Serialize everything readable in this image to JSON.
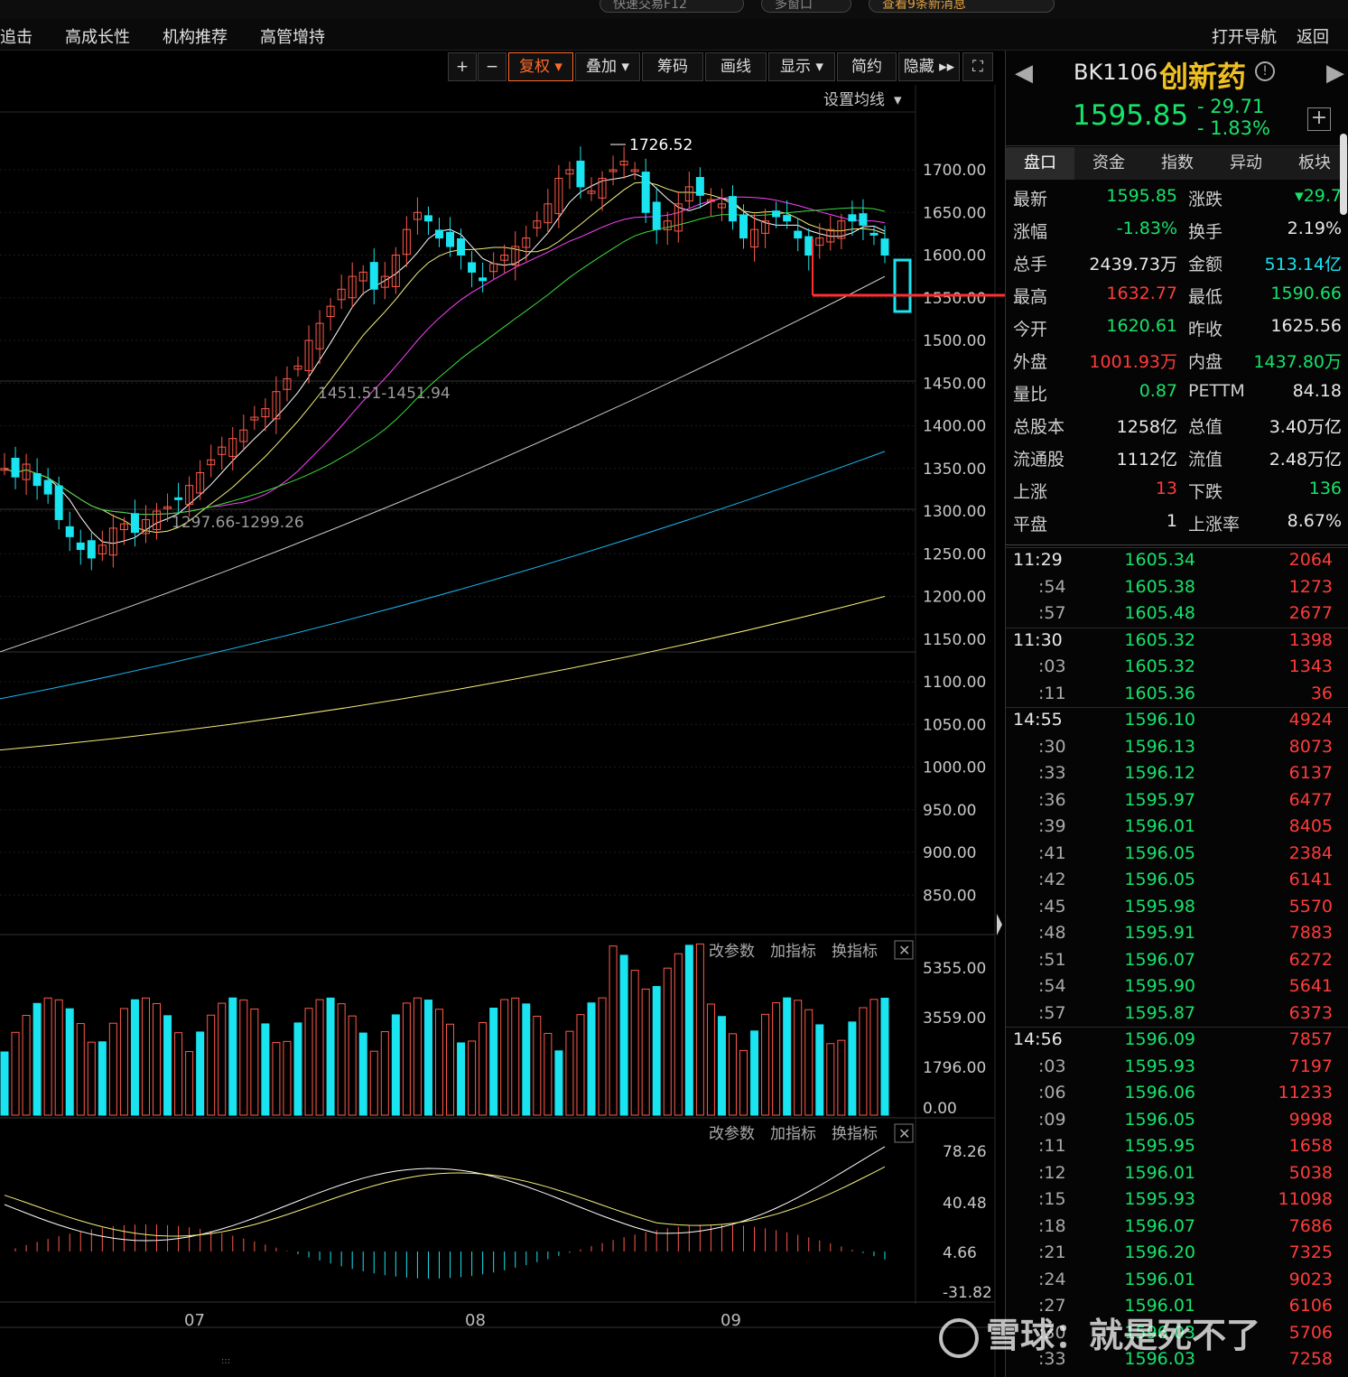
{
  "top": {
    "pills": [
      "快速交易F12",
      "多窗口",
      "查看9条新消息"
    ]
  },
  "nav": {
    "left_items": [
      "追击",
      "高成长性",
      "机构推荐",
      "高管增持"
    ],
    "right_items": [
      "打开导航",
      "返回"
    ]
  },
  "toolbar": {
    "buttons": [
      "+",
      "−",
      "复权",
      "叠加",
      "筹码",
      "画线",
      "显示",
      "简约",
      "隐藏"
    ],
    "active": "复权",
    "ma_setting": "设置均线"
  },
  "main_chart": {
    "y_ticks": [
      "1700.00",
      "1650.00",
      "1600.00",
      "1550.00",
      "1500.00",
      "1450.00",
      "1400.00",
      "1350.00",
      "1300.00",
      "1250.00",
      "1200.00",
      "1150.00",
      "1100.00",
      "1050.00",
      "1000.00",
      "950.00",
      "900.00",
      "850.00"
    ],
    "high_label": "1726.52",
    "annotation_1": "1451.51-1451.94",
    "annotation_2": "1297.66-1299.26"
  },
  "volume": {
    "links": [
      "改参数",
      "加指标",
      "换指标"
    ],
    "y_ticks": [
      "5355.00",
      "3559.00",
      "1796.00",
      "0.00"
    ]
  },
  "indicator": {
    "links": [
      "改参数",
      "加指标",
      "换指标"
    ],
    "y_ticks": [
      "78.26",
      "40.48",
      "4.66",
      "-31.82"
    ]
  },
  "x_axis": {
    "labels": [
      "07",
      "08",
      "09"
    ]
  },
  "chart_data": {
    "type": "candlestick",
    "title": "",
    "x_labels": [
      "07",
      "08",
      "09"
    ],
    "ylim": [
      850,
      1726.52
    ],
    "price_high": 1726.52,
    "last_close": 1595.85
  },
  "quote": {
    "code": "BK1106",
    "name": "创新药",
    "price": "1595.85",
    "change": "- 29.71",
    "change_pct": "- 1.83%",
    "tabs": [
      "盘口",
      "资金",
      "指数",
      "异动",
      "板块"
    ],
    "rows": [
      {
        "l1": "最新",
        "v1": "1595.85",
        "c1": "green",
        "l2": "涨跌",
        "v2": "▾29.7",
        "c2": "green"
      },
      {
        "l1": "涨幅",
        "v1": "-1.83%",
        "c1": "green",
        "l2": "换手",
        "v2": "2.19%",
        "c2": "white"
      },
      {
        "l1": "总手",
        "v1": "2439.73万",
        "c1": "white",
        "l2": "金额",
        "v2": "513.14亿",
        "c2": "cyan"
      },
      {
        "l1": "最高",
        "v1": "1632.77",
        "c1": "red",
        "l2": "最低",
        "v2": "1590.66",
        "c2": "green"
      },
      {
        "l1": "今开",
        "v1": "1620.61",
        "c1": "green",
        "l2": "昨收",
        "v2": "1625.56",
        "c2": "white"
      },
      {
        "l1": "外盘",
        "v1": "1001.93万",
        "c1": "red",
        "l2": "内盘",
        "v2": "1437.80万",
        "c2": "green"
      },
      {
        "l1": "量比",
        "v1": "0.87",
        "c1": "green",
        "l2": "PETTM",
        "v2": "84.18",
        "c2": "white"
      },
      {
        "l1": "总股本",
        "v1": "1258亿",
        "c1": "white",
        "l2": "总值",
        "v2": "3.40万亿",
        "c2": "white"
      },
      {
        "l1": "流通股",
        "v1": "1112亿",
        "c1": "white",
        "l2": "流值",
        "v2": "2.48万亿",
        "c2": "white"
      },
      {
        "l1": "上涨",
        "v1": "13",
        "c1": "red",
        "l2": "下跌",
        "v2": "136",
        "c2": "green"
      },
      {
        "l1": "平盘",
        "v1": "1",
        "c1": "white",
        "l2": "上涨率",
        "v2": "8.67%",
        "c2": "white"
      }
    ],
    "ticks": [
      {
        "t": "11:29",
        "p": "1605.34",
        "v": "2064",
        "major": true
      },
      {
        "t": ":54",
        "p": "1605.38",
        "v": "1273",
        "major": false
      },
      {
        "t": ":57",
        "p": "1605.48",
        "v": "2677",
        "major": false
      },
      {
        "t": "11:30",
        "p": "1605.32",
        "v": "1398",
        "major": true
      },
      {
        "t": ":03",
        "p": "1605.32",
        "v": "1343",
        "major": false
      },
      {
        "t": ":11",
        "p": "1605.36",
        "v": "36",
        "major": false
      },
      {
        "t": "14:55",
        "p": "1596.10",
        "v": "4924",
        "major": true
      },
      {
        "t": ":30",
        "p": "1596.13",
        "v": "8073",
        "major": false
      },
      {
        "t": ":33",
        "p": "1596.12",
        "v": "6137",
        "major": false
      },
      {
        "t": ":36",
        "p": "1595.97",
        "v": "6477",
        "major": false
      },
      {
        "t": ":39",
        "p": "1596.01",
        "v": "8405",
        "major": false
      },
      {
        "t": ":41",
        "p": "1596.05",
        "v": "2384",
        "major": false
      },
      {
        "t": ":42",
        "p": "1596.05",
        "v": "6141",
        "major": false
      },
      {
        "t": ":45",
        "p": "1595.98",
        "v": "5570",
        "major": false
      },
      {
        "t": ":48",
        "p": "1595.91",
        "v": "7883",
        "major": false
      },
      {
        "t": ":51",
        "p": "1596.07",
        "v": "6272",
        "major": false
      },
      {
        "t": ":54",
        "p": "1595.90",
        "v": "5641",
        "major": false
      },
      {
        "t": ":57",
        "p": "1595.87",
        "v": "6373",
        "major": false
      },
      {
        "t": "14:56",
        "p": "1596.09",
        "v": "7857",
        "major": true
      },
      {
        "t": ":03",
        "p": "1595.93",
        "v": "7197",
        "major": false
      },
      {
        "t": ":06",
        "p": "1596.06",
        "v": "11233",
        "major": false
      },
      {
        "t": ":09",
        "p": "1596.05",
        "v": "9998",
        "major": false
      },
      {
        "t": ":11",
        "p": "1595.95",
        "v": "1658",
        "major": false
      },
      {
        "t": ":12",
        "p": "1596.01",
        "v": "5038",
        "major": false
      },
      {
        "t": ":15",
        "p": "1595.93",
        "v": "11098",
        "major": false
      },
      {
        "t": ":18",
        "p": "1596.07",
        "v": "7686",
        "major": false
      },
      {
        "t": ":21",
        "p": "1596.20",
        "v": "7325",
        "major": false
      },
      {
        "t": ":24",
        "p": "1596.01",
        "v": "9023",
        "major": false
      },
      {
        "t": ":27",
        "p": "1596.01",
        "v": "6106",
        "major": false
      },
      {
        "t": ":30",
        "p": "1596.03",
        "v": "5706",
        "major": false
      },
      {
        "t": ":33",
        "p": "1596.03",
        "v": "7258",
        "major": false
      }
    ]
  },
  "watermark": "雪球：就是死不了"
}
